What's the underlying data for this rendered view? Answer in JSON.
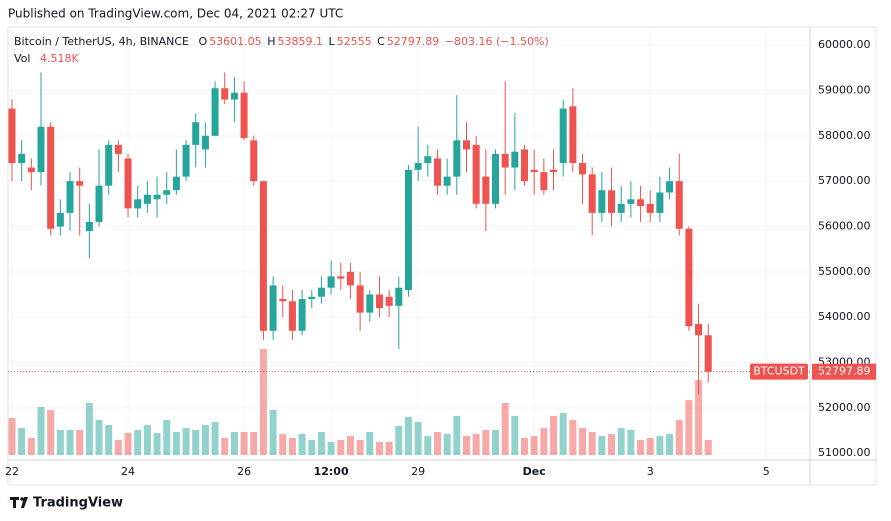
{
  "published": "Published on TradingView.com, Dec 04, 2021 02:27 UTC",
  "footer": "TradingView",
  "chart_data": {
    "type": "candlestick",
    "title": "Bitcoin / TetherUS, 4h, BINANCE",
    "symbol": "BTCUSDT",
    "legend": {
      "o": "O",
      "h": "H",
      "l": "L",
      "c": "C",
      "change": "−803.16 (−1.50%)",
      "vol": "Vol",
      "vol_value": "4.518K"
    },
    "up_color": "#26a69a",
    "down_color": "#ef5350",
    "categories": [
      "22",
      null,
      null,
      null,
      null,
      null,
      null,
      null,
      null,
      null,
      null,
      null,
      "24",
      null,
      null,
      null,
      null,
      null,
      null,
      null,
      null,
      null,
      null,
      null,
      "26",
      null,
      null,
      null,
      null,
      null,
      null,
      null,
      null,
      "12:00",
      null,
      null,
      null,
      null,
      null,
      null,
      null,
      null,
      "29",
      null,
      null,
      null,
      null,
      null,
      null,
      null,
      null,
      null,
      null,
      null,
      "Dec",
      null,
      null,
      null,
      null,
      null,
      null,
      null,
      null,
      null,
      null,
      null,
      "3",
      null,
      null,
      null,
      null,
      null,
      null,
      null,
      null,
      null,
      null,
      null,
      "5",
      null,
      null,
      null,
      null
    ],
    "open": [
      58600,
      57400,
      57300,
      57200,
      58200,
      56000,
      56300,
      57000,
      55900,
      56100,
      56900,
      57800,
      57500,
      56400,
      56500,
      56600,
      56700,
      56800,
      57100,
      57800,
      57700,
      58000,
      59050,
      58800,
      58950,
      57900,
      57000,
      53700,
      54400,
      54350,
      53700,
      54400,
      54450,
      54650,
      54900,
      55000,
      54700,
      54100,
      54500,
      54450,
      54250,
      54600,
      57250,
      57400,
      57500,
      56900,
      57100,
      57900,
      57800,
      57100,
      56500,
      57600,
      57300,
      57700,
      57250,
      57200,
      57250,
      57400,
      58650,
      57400,
      57150,
      56300,
      56800,
      56300,
      56500,
      56600,
      56500,
      56300,
      56750,
      57000,
      55950,
      53850,
      53601.05,
      null,
      null,
      null,
      null,
      null,
      null,
      null,
      null,
      null,
      null
    ],
    "high": [
      58800,
      57900,
      57500,
      59400,
      58300,
      56600,
      57200,
      57300,
      56500,
      57700,
      57900,
      57900,
      57600,
      56900,
      57000,
      57100,
      57200,
      57700,
      57900,
      58500,
      58300,
      59200,
      59400,
      59300,
      59200,
      58000,
      57000,
      54900,
      54700,
      54600,
      54600,
      54600,
      54900,
      55250,
      55200,
      55200,
      55000,
      54600,
      54900,
      54600,
      54900,
      57350,
      58200,
      57800,
      57700,
      57500,
      58900,
      58300,
      58000,
      57700,
      57700,
      59200,
      58500,
      57800,
      57700,
      57500,
      57700,
      58800,
      59050,
      57600,
      57300,
      57200,
      57300,
      56900,
      57000,
      56900,
      56800,
      57100,
      57300,
      57600,
      56000,
      54300,
      53859.1,
      null,
      null,
      null,
      null,
      null,
      null,
      null,
      null,
      null,
      null
    ],
    "low": [
      57000,
      57000,
      56800,
      56900,
      55800,
      55800,
      55900,
      55800,
      55300,
      56000,
      56700,
      57200,
      56200,
      56200,
      56300,
      56200,
      56500,
      56700,
      57000,
      57300,
      57300,
      58000,
      58700,
      58300,
      57900,
      56900,
      53500,
      53500,
      54000,
      53500,
      53600,
      54200,
      54300,
      54500,
      54600,
      54400,
      53700,
      53900,
      54000,
      54000,
      53300,
      54450,
      57000,
      57100,
      56700,
      56700,
      56700,
      57200,
      56400,
      55900,
      56400,
      56700,
      56800,
      56900,
      56700,
      56700,
      56800,
      57100,
      57200,
      56500,
      55800,
      56100,
      56000,
      56100,
      56200,
      56100,
      56100,
      56100,
      56600,
      55800,
      53700,
      52300,
      52555.0,
      null,
      null,
      null,
      null,
      null,
      null,
      null,
      null,
      null,
      null
    ],
    "close": [
      57400,
      57600,
      57200,
      58200,
      55950,
      56300,
      57000,
      56900,
      56100,
      56900,
      57800,
      57600,
      56400,
      56600,
      56700,
      56700,
      56800,
      57100,
      57800,
      58300,
      58000,
      59050,
      58800,
      58950,
      57950,
      57000,
      53700,
      54700,
      54350,
      53700,
      54400,
      54450,
      54650,
      54900,
      54850,
      54700,
      54100,
      54500,
      54200,
      54250,
      54650,
      57250,
      57400,
      57550,
      56900,
      57100,
      57900,
      57700,
      56500,
      56500,
      57600,
      57300,
      57650,
      57000,
      57200,
      56800,
      57200,
      58600,
      57400,
      57150,
      56300,
      56800,
      56300,
      56500,
      56600,
      56450,
      56300,
      56750,
      57000,
      55950,
      53800,
      53600,
      52797.89,
      null,
      null,
      null,
      null,
      null,
      null,
      null,
      null,
      null,
      null
    ],
    "volume": [
      11100,
      8100,
      5100,
      14400,
      13500,
      7500,
      7500,
      7500,
      15600,
      10500,
      9000,
      4500,
      6600,
      7500,
      9000,
      6600,
      10500,
      6900,
      8100,
      7500,
      9000,
      9900,
      5100,
      6900,
      6900,
      6900,
      31800,
      13500,
      6300,
      5100,
      6300,
      4500,
      6900,
      3900,
      4500,
      5700,
      4500,
      6900,
      3900,
      3900,
      8700,
      11400,
      9900,
      5700,
      6900,
      6300,
      11700,
      5700,
      6300,
      7500,
      7500,
      15600,
      11700,
      5100,
      5700,
      8100,
      11700,
      12600,
      10500,
      8100,
      6900,
      5700,
      6300,
      8100,
      7500,
      4500,
      5100,
      5700,
      6300,
      10500,
      16500,
      22500,
      4518,
      null,
      null,
      null,
      null,
      null,
      null,
      null,
      null,
      null,
      null
    ],
    "ylim": [
      50850,
      60400
    ],
    "yticks": [
      {
        "value": 51000,
        "label": "51000.00"
      },
      {
        "value": 52000,
        "label": "52000.00"
      },
      {
        "value": 53000,
        "label": "53000.00"
      },
      {
        "value": 54000,
        "label": "54000.00"
      },
      {
        "value": 55000,
        "label": "55000.00"
      },
      {
        "value": 56000,
        "label": "56000.00"
      },
      {
        "value": 57000,
        "label": "57000.00"
      },
      {
        "value": 58000,
        "label": "58000.00"
      },
      {
        "value": 59000,
        "label": "59000.00"
      },
      {
        "value": 60000,
        "label": "60000.00"
      }
    ],
    "grid": true
  }
}
